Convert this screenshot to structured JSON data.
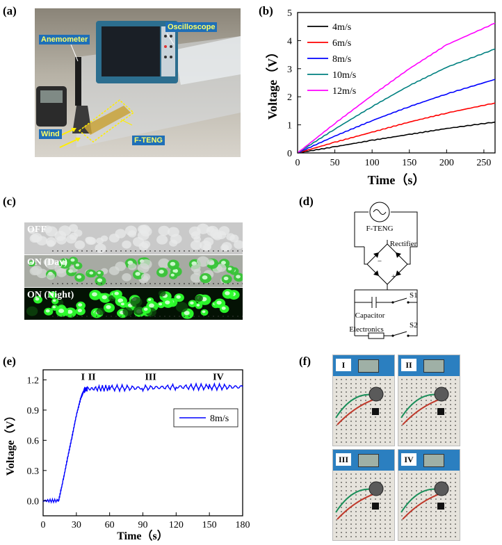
{
  "panels": {
    "a": {
      "label": "(a)",
      "tags": {
        "anemometer": "Anemometer",
        "oscilloscope": "Oscilloscope",
        "wind": "Wind",
        "fteng": "F-TENG"
      },
      "tag_fill": "#1f6fb8",
      "tag_text_color": "#ffff66"
    },
    "b": {
      "label": "(b)"
    },
    "c": {
      "label": "(c)",
      "strips": {
        "off": "OFF",
        "on_day": "ON (Day)",
        "on_night": "ON (Night)"
      }
    },
    "d": {
      "label": "(d)",
      "source": "F-TENG",
      "rectifier": "Rectifier",
      "capacitor": "Capacitor",
      "electronics": "Electronics",
      "switch1": "S1",
      "switch2": "S2",
      "minus": "−",
      "plus": "+"
    },
    "e": {
      "label": "(e)"
    },
    "f": {
      "label": "(f)",
      "boards": [
        "I",
        "II",
        "III",
        "IV"
      ]
    }
  },
  "chart_data": [
    {
      "type": "line",
      "title": "",
      "xlabel": "Time（s）",
      "ylabel": "Voltage（V）",
      "xlim": [
        0,
        265
      ],
      "ylim": [
        0,
        5
      ],
      "xticks": [
        0,
        50,
        100,
        150,
        200,
        250
      ],
      "yticks": [
        0,
        1,
        2,
        3,
        4,
        5
      ],
      "legend_position": "top-left",
      "series": [
        {
          "name": "4m/s",
          "color": "#000000",
          "x": [
            0,
            50,
            100,
            150,
            200,
            265
          ],
          "y": [
            0,
            0.22,
            0.45,
            0.66,
            0.87,
            1.1
          ]
        },
        {
          "name": "6m/s",
          "color": "#ff0000",
          "x": [
            0,
            50,
            100,
            150,
            200,
            265
          ],
          "y": [
            0,
            0.38,
            0.74,
            1.1,
            1.42,
            1.78
          ]
        },
        {
          "name": "8m/s",
          "color": "#0000ff",
          "x": [
            0,
            50,
            100,
            150,
            200,
            265
          ],
          "y": [
            0,
            0.6,
            1.15,
            1.65,
            2.1,
            2.62
          ]
        },
        {
          "name": "10m/s",
          "color": "#008080",
          "x": [
            0,
            50,
            100,
            150,
            200,
            265
          ],
          "y": [
            0,
            0.85,
            1.65,
            2.4,
            3.05,
            3.7
          ]
        },
        {
          "name": "12m/s",
          "color": "#ff00ff",
          "x": [
            0,
            50,
            100,
            150,
            200,
            265
          ],
          "y": [
            0,
            1.05,
            2.05,
            3.0,
            3.85,
            4.62
          ]
        }
      ]
    },
    {
      "type": "line",
      "title": "",
      "xlabel": "Time（s）",
      "ylabel": "Voltage（V）",
      "xlim": [
        0,
        180
      ],
      "ylim": [
        -0.15,
        1.3
      ],
      "xticks": [
        0,
        30,
        60,
        90,
        120,
        150,
        180
      ],
      "yticks": [
        0.0,
        0.3,
        0.6,
        0.9,
        1.2
      ],
      "ytick_labels": [
        "0.0",
        "0.3",
        "0.6",
        "0.9",
        "1.2"
      ],
      "legend_position": "middle-right",
      "annotations": [
        {
          "text": "I",
          "x": 36,
          "y": 1.16
        },
        {
          "text": "II",
          "x": 44,
          "y": 1.16
        },
        {
          "text": "III",
          "x": 97,
          "y": 1.16
        },
        {
          "text": "IV",
          "x": 158,
          "y": 1.16
        }
      ],
      "series": [
        {
          "name": "8m/s",
          "color": "#0000ff",
          "x": [
            0,
            14,
            18,
            22,
            26,
            30,
            34,
            37,
            40,
            60,
            90,
            120,
            150,
            180
          ],
          "y": [
            0,
            0,
            0.2,
            0.42,
            0.63,
            0.85,
            1.02,
            1.1,
            1.11,
            1.12,
            1.12,
            1.13,
            1.13,
            1.13
          ]
        }
      ]
    }
  ]
}
